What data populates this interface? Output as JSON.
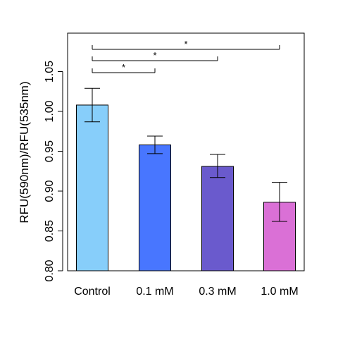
{
  "chart_data": {
    "type": "bar",
    "categories": [
      "Control",
      "0.1 mM",
      "0.3 mM",
      "1.0 mM"
    ],
    "values": [
      1.008,
      0.958,
      0.931,
      0.886
    ],
    "error_low": [
      0.987,
      0.947,
      0.917,
      0.862
    ],
    "error_high": [
      1.029,
      0.969,
      0.946,
      0.911
    ],
    "colors": [
      "#87CEFA",
      "#4876FF",
      "#6A5ACD",
      "#DA70D6"
    ],
    "title": "",
    "xlabel": "",
    "ylabel": "RFU(590nm)/RFU(535nm)",
    "ylim": [
      0.8,
      1.1
    ],
    "yticks": [
      "0.80",
      "0.85",
      "0.90",
      "0.95",
      "1.00",
      "1.05"
    ],
    "grid": false,
    "significance": [
      {
        "from": "Control",
        "to": "0.1 mM",
        "label": "*"
      },
      {
        "from": "Control",
        "to": "0.3 mM",
        "label": "*"
      },
      {
        "from": "Control",
        "to": "1.0 mM",
        "label": "*"
      }
    ]
  }
}
